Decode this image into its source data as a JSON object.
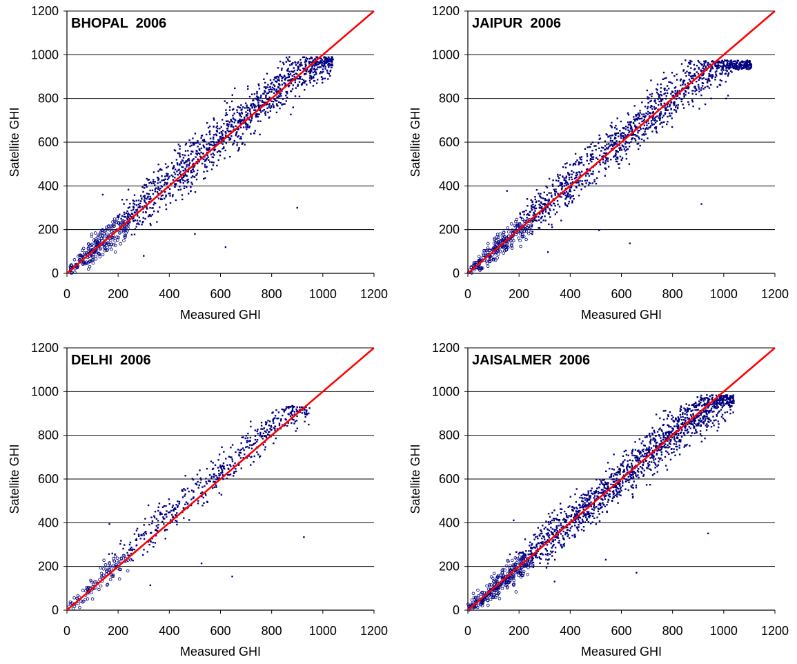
{
  "chart_data": [
    {
      "type": "scatter",
      "title": "BHOPAL  2006",
      "xlabel": "Measured GHI",
      "ylabel": "Satellite GHI",
      "xlim": [
        0,
        1200
      ],
      "ylim": [
        0,
        1200
      ],
      "xticks": [
        "0",
        "200",
        "400",
        "600",
        "800",
        "1000",
        "1200"
      ],
      "yticks": [
        "0",
        "200",
        "400",
        "600",
        "800",
        "1000",
        "1200"
      ],
      "grid": "horizontal",
      "series": [
        {
          "type": "scatter",
          "color": "#000080",
          "points_estimated": {
            "n": 1500,
            "x_max": 1040,
            "y_max": 990,
            "bias": 20,
            "spread": 55
          }
        },
        {
          "type": "line",
          "color": "#ff0000",
          "x": [
            0,
            1200
          ],
          "y": [
            0,
            1200
          ]
        }
      ]
    },
    {
      "type": "scatter",
      "title": "JAIPUR  2006",
      "xlabel": "Measured GHI",
      "ylabel": "Satellite GHI",
      "xlim": [
        0,
        1200
      ],
      "ylim": [
        0,
        1200
      ],
      "xticks": [
        "0",
        "200",
        "400",
        "600",
        "800",
        "1000",
        "1200"
      ],
      "yticks": [
        "0",
        "200",
        "400",
        "600",
        "800",
        "1000",
        "1200"
      ],
      "grid": "horizontal",
      "series": [
        {
          "type": "scatter",
          "color": "#000080",
          "points_estimated": {
            "n": 1500,
            "x_max": 1110,
            "y_max": 975,
            "bias": 10,
            "spread": 50
          }
        },
        {
          "type": "line",
          "color": "#ff0000",
          "x": [
            0,
            1200
          ],
          "y": [
            0,
            1200
          ]
        }
      ]
    },
    {
      "type": "scatter",
      "title": "DELHI  2006",
      "xlabel": "Measured GHI",
      "ylabel": "Satellite GHI",
      "xlim": [
        0,
        1200
      ],
      "ylim": [
        0,
        1200
      ],
      "xticks": [
        "0",
        "200",
        "400",
        "600",
        "800",
        "1000",
        "1200"
      ],
      "yticks": [
        "0",
        "200",
        "400",
        "600",
        "800",
        "1000",
        "1200"
      ],
      "grid": "horizontal",
      "series": [
        {
          "type": "scatter",
          "color": "#000080",
          "points_estimated": {
            "n": 600,
            "x_max": 950,
            "y_max": 935,
            "bias": 35,
            "spread": 45
          }
        },
        {
          "type": "line",
          "color": "#ff0000",
          "x": [
            0,
            1200
          ],
          "y": [
            0,
            1200
          ]
        }
      ]
    },
    {
      "type": "scatter",
      "title": "JAISALMER  2006",
      "xlabel": "Measured GHI",
      "ylabel": "Satellite GHI",
      "xlim": [
        0,
        1200
      ],
      "ylim": [
        0,
        1200
      ],
      "xticks": [
        "0",
        "200",
        "400",
        "600",
        "800",
        "1000",
        "1200"
      ],
      "yticks": [
        "0",
        "200",
        "400",
        "600",
        "800",
        "1000",
        "1200"
      ],
      "grid": "horizontal",
      "series": [
        {
          "type": "scatter",
          "color": "#000080",
          "points_estimated": {
            "n": 1800,
            "x_max": 1040,
            "y_max": 985,
            "bias": 5,
            "spread": 50
          }
        },
        {
          "type": "line",
          "color": "#ff0000",
          "x": [
            0,
            1200
          ],
          "y": [
            0,
            1200
          ]
        }
      ]
    }
  ]
}
